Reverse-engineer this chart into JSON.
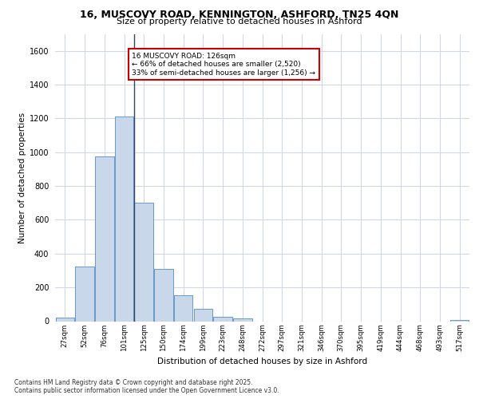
{
  "title_line1": "16, MUSCOVY ROAD, KENNINGTON, ASHFORD, TN25 4QN",
  "title_line2": "Size of property relative to detached houses in Ashford",
  "xlabel": "Distribution of detached houses by size in Ashford",
  "ylabel": "Number of detached properties",
  "categories": [
    "27sqm",
    "52sqm",
    "76sqm",
    "101sqm",
    "125sqm",
    "150sqm",
    "174sqm",
    "199sqm",
    "223sqm",
    "248sqm",
    "272sqm",
    "297sqm",
    "321sqm",
    "346sqm",
    "370sqm",
    "395sqm",
    "419sqm",
    "444sqm",
    "468sqm",
    "493sqm",
    "517sqm"
  ],
  "values": [
    20,
    325,
    975,
    1210,
    700,
    310,
    155,
    75,
    25,
    15,
    0,
    0,
    0,
    0,
    0,
    0,
    0,
    0,
    0,
    0,
    5
  ],
  "bar_color": "#c8d8ea",
  "bar_edge_color": "#6699cc",
  "vline_x_index": 3,
  "vline_color": "#334466",
  "annotation_text": "16 MUSCOVY ROAD: 126sqm\n← 66% of detached houses are smaller (2,520)\n33% of semi-detached houses are larger (1,256) →",
  "annotation_box_color": "#ffffff",
  "annotation_box_edge": "#cc0000",
  "ylim": [
    0,
    1700
  ],
  "yticks": [
    0,
    200,
    400,
    600,
    800,
    1000,
    1200,
    1400,
    1600
  ],
  "bg_color": "#ffffff",
  "grid_color": "#d0d8e8",
  "footer_line1": "Contains HM Land Registry data © Crown copyright and database right 2025.",
  "footer_line2": "Contains public sector information licensed under the Open Government Licence v3.0."
}
